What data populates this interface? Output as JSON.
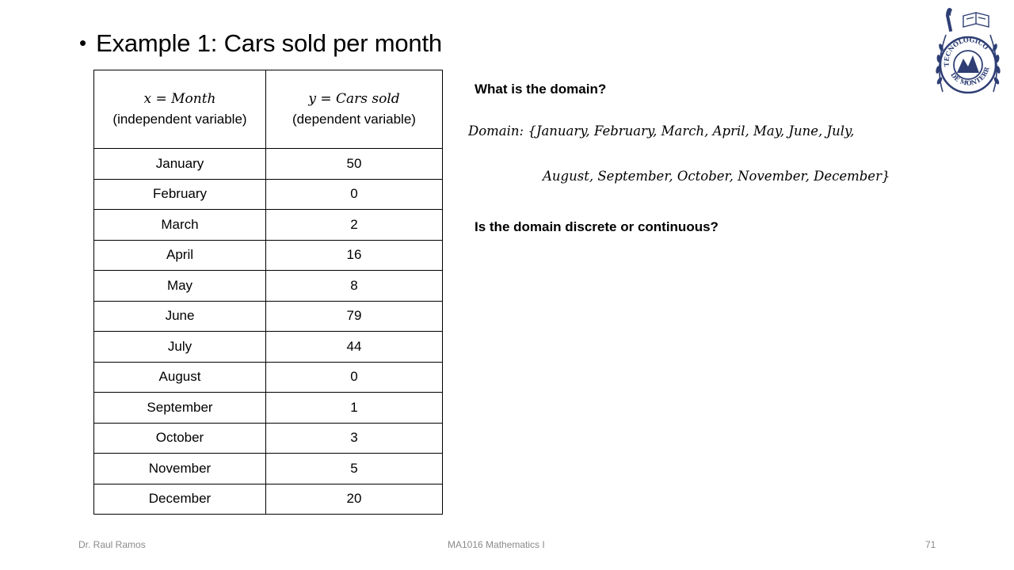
{
  "slide": {
    "title": "Example 1: Cars sold per month",
    "bullet": "•"
  },
  "table": {
    "header": {
      "x_expr": "x = Month",
      "x_desc": "(independent variable)",
      "y_expr": "y = Cars sold",
      "y_desc": "(dependent variable)"
    },
    "rows": [
      {
        "month": "January",
        "cars": "50"
      },
      {
        "month": "February",
        "cars": "0"
      },
      {
        "month": "March",
        "cars": "2"
      },
      {
        "month": "April",
        "cars": "16"
      },
      {
        "month": "May",
        "cars": "8"
      },
      {
        "month": "June",
        "cars": "79"
      },
      {
        "month": "July",
        "cars": "44"
      },
      {
        "month": "August",
        "cars": "0"
      },
      {
        "month": "September",
        "cars": "1"
      },
      {
        "month": "October",
        "cars": "3"
      },
      {
        "month": "November",
        "cars": "5"
      },
      {
        "month": "December",
        "cars": "20"
      }
    ]
  },
  "right": {
    "question1": "What is the domain?",
    "domain_line1": "Domain: {January, February, March, April, May, June, July,",
    "domain_line2": "August, September, October, November, December}",
    "question2": "Is the domain discrete or continuous?"
  },
  "footer": {
    "author": "Dr. Raul Ramos",
    "course": "MA1016 Mathematics I",
    "page": "71"
  },
  "logo": {
    "name": "tec-de-monterrey-seal",
    "color": "#2e3e74",
    "text_top": "TECNOLOGICO",
    "text_bottom": "DE MONTERREY"
  }
}
